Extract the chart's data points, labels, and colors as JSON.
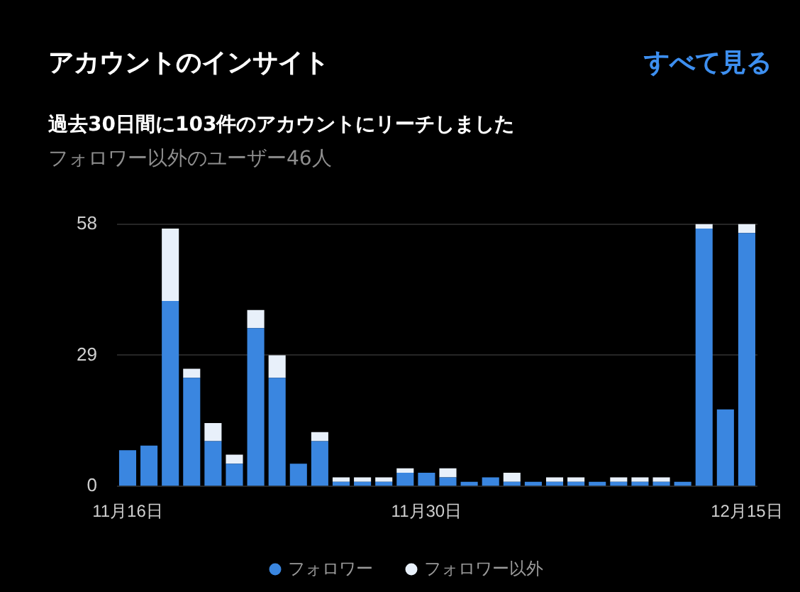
{
  "chart_data": {
    "type": "bar",
    "title": "アカウントのインサイト",
    "subtitle": "過去30日間に103件のアカウントにリーチしました",
    "annotations": [
      "すべて見る",
      "フォロワー以外のユーザー46人"
    ],
    "categories": [
      "11月16日",
      null,
      null,
      null,
      null,
      null,
      null,
      null,
      null,
      null,
      null,
      null,
      null,
      null,
      "11月30日",
      null,
      null,
      null,
      null,
      null,
      null,
      null,
      null,
      null,
      null,
      null,
      null,
      null,
      null,
      "12月15日"
    ],
    "series": [
      {
        "name": "フォロワー",
        "color": "#3a86e0",
        "values": [
          8,
          9,
          41,
          24,
          10,
          5,
          35,
          24,
          5,
          10,
          1,
          1,
          1,
          3,
          3,
          2,
          1,
          2,
          1,
          1,
          1,
          1,
          1,
          1,
          1,
          1,
          1,
          57,
          17,
          56
        ]
      },
      {
        "name": "フォロワー以外",
        "color": "#e8f0fa",
        "values": [
          0,
          0,
          16,
          2,
          4,
          2,
          4,
          5,
          0,
          2,
          1,
          1,
          1,
          1,
          0,
          2,
          0,
          0,
          2,
          0,
          1,
          1,
          0,
          1,
          1,
          1,
          0,
          1,
          0,
          2
        ]
      }
    ],
    "stacked": true,
    "ylim": [
      0,
      58
    ],
    "yticks": [
      0,
      29,
      58
    ],
    "grid": "y",
    "legend": "bottom"
  }
}
